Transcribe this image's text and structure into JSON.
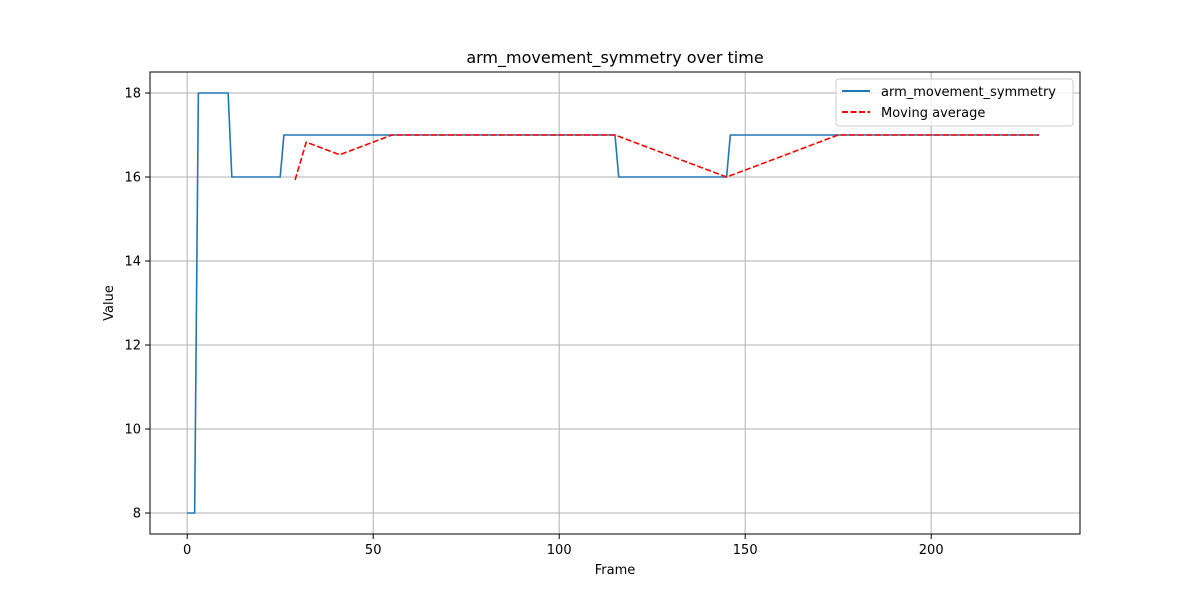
{
  "chart_data": {
    "type": "line",
    "title": "arm_movement_symmetry over time",
    "xlabel": "Frame",
    "ylabel": "Value",
    "xlim": [
      -10,
      240
    ],
    "ylim": [
      7.5,
      18.5
    ],
    "xticks": [
      0,
      50,
      100,
      150,
      200
    ],
    "yticks": [
      8,
      10,
      12,
      14,
      16,
      18
    ],
    "grid": true,
    "legend_position": "top-right",
    "series": [
      {
        "name": "arm_movement_symmetry",
        "color": "#1f77b4",
        "style": "solid",
        "x": [
          0,
          2,
          3,
          11,
          12,
          25,
          26,
          115,
          116,
          145,
          146,
          229
        ],
        "y": [
          8,
          8,
          18,
          18,
          16,
          16,
          17,
          17,
          16,
          16,
          17,
          17
        ]
      },
      {
        "name": "Moving average",
        "color": "#ff0000",
        "style": "dashed",
        "x": [
          29,
          32,
          41,
          55,
          115,
          145,
          175,
          229
        ],
        "y": [
          15.93,
          16.83,
          16.53,
          17,
          17,
          16,
          17,
          17
        ]
      }
    ]
  }
}
